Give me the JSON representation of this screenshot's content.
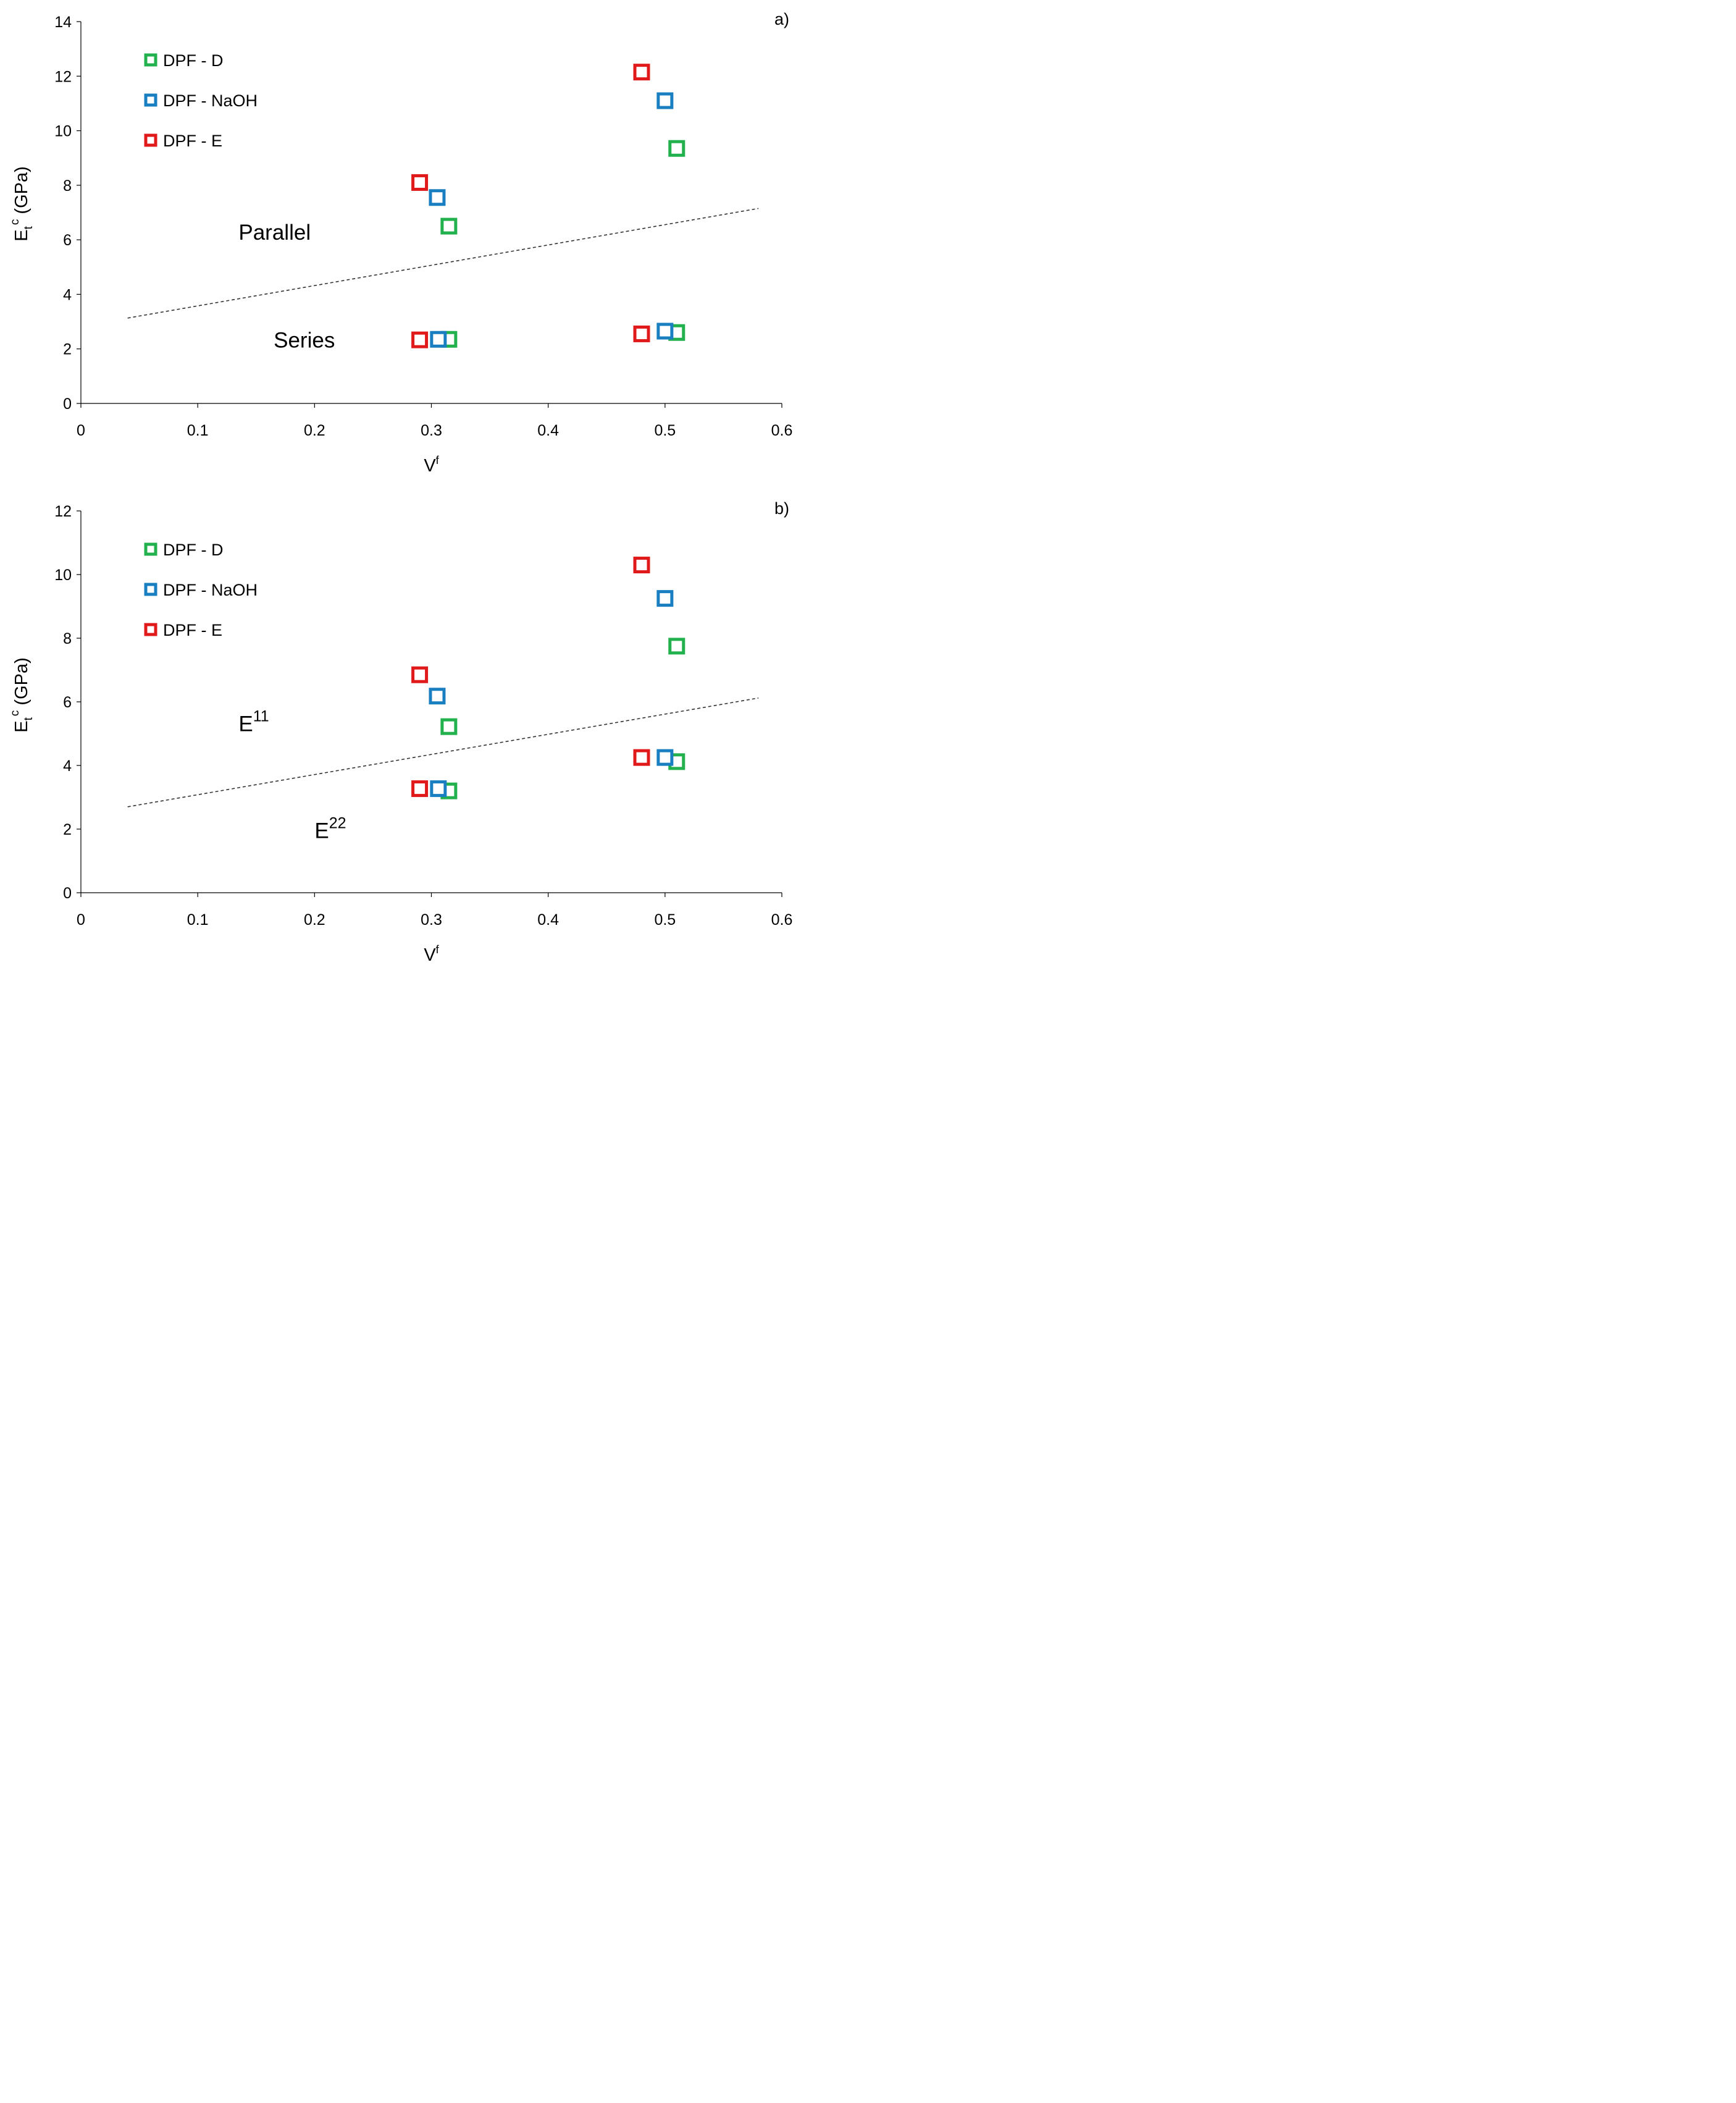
{
  "chart_data": [
    {
      "type": "scatter",
      "panel_label": "a)",
      "xlabel": "V",
      "xlabel_sup": "f",
      "ylabel": "E",
      "ylabel_sub": "t",
      "ylabel_sup": "c",
      "ylabel_unit": " (GPa)",
      "xlim": [
        0,
        0.6
      ],
      "ylim": [
        0,
        14
      ],
      "xticks": [
        0,
        0.1,
        0.2,
        0.3,
        0.4,
        0.5,
        0.6
      ],
      "xtick_labels": [
        "0",
        "0.1",
        "0.2",
        "0.3",
        "0.4",
        "0.5",
        "0.6"
      ],
      "yticks": [
        0,
        2,
        4,
        6,
        8,
        10,
        12,
        14
      ],
      "ytick_labels": [
        "0",
        "2",
        "4",
        "6",
        "8",
        "10",
        "12",
        "14"
      ],
      "legend": [
        "DPF - D",
        "DPF - NaOH",
        "DPF - E"
      ],
      "series": [
        {
          "name": "DPF - D",
          "color": "#22b14c",
          "points": [
            [
              0.315,
              6.5
            ],
            [
              0.51,
              9.35
            ],
            [
              0.315,
              2.35
            ],
            [
              0.51,
              2.6
            ]
          ]
        },
        {
          "name": "DPF - NaOH",
          "color": "#1a7fc1",
          "points": [
            [
              0.305,
              7.55
            ],
            [
              0.5,
              11.1
            ],
            [
              0.306,
              2.35
            ],
            [
              0.5,
              2.65
            ]
          ]
        },
        {
          "name": "DPF - E",
          "color": "#e0191b",
          "points": [
            [
              0.29,
              8.1
            ],
            [
              0.48,
              12.15
            ],
            [
              0.29,
              2.33
            ],
            [
              0.48,
              2.55
            ]
          ]
        }
      ],
      "fit_line": {
        "style": "dashed",
        "x": [
          0.04,
          0.58
        ],
        "y": [
          3.13,
          7.15
        ]
      },
      "annotations": [
        {
          "text": "Parallel",
          "x": 0.135,
          "y": 6.0
        },
        {
          "text": "Series",
          "x": 0.165,
          "y": 2.05
        }
      ]
    },
    {
      "type": "scatter",
      "panel_label": "b)",
      "xlabel": "V",
      "xlabel_sup": "f",
      "ylabel": "E",
      "ylabel_sub": "t",
      "ylabel_sup": "c",
      "ylabel_unit": " (GPa)",
      "xlim": [
        0,
        0.6
      ],
      "ylim": [
        0,
        12
      ],
      "xticks": [
        0,
        0.1,
        0.2,
        0.3,
        0.4,
        0.5,
        0.6
      ],
      "xtick_labels": [
        "0",
        "0.1",
        "0.2",
        "0.3",
        "0.4",
        "0.5",
        "0.6"
      ],
      "yticks": [
        0,
        2,
        4,
        6,
        8,
        10,
        12
      ],
      "ytick_labels": [
        "0",
        "2",
        "4",
        "6",
        "8",
        "10",
        "12"
      ],
      "legend": [
        "DPF - D",
        "DPF - NaOH",
        "DPF - E"
      ],
      "series": [
        {
          "name": "DPF - D",
          "color": "#22b14c",
          "points": [
            [
              0.315,
              5.22
            ],
            [
              0.51,
              7.75
            ],
            [
              0.315,
              3.2
            ],
            [
              0.51,
              4.12
            ]
          ]
        },
        {
          "name": "DPF - NaOH",
          "color": "#1a7fc1",
          "points": [
            [
              0.305,
              6.18
            ],
            [
              0.5,
              9.25
            ],
            [
              0.306,
              3.27
            ],
            [
              0.5,
              4.25
            ]
          ]
        },
        {
          "name": "DPF - E",
          "color": "#e0191b",
          "points": [
            [
              0.29,
              6.85
            ],
            [
              0.48,
              10.3
            ],
            [
              0.29,
              3.27
            ],
            [
              0.48,
              4.25
            ]
          ]
        }
      ],
      "fit_line": {
        "style": "dashed",
        "x": [
          0.04,
          0.58
        ],
        "y": [
          2.7,
          6.12
        ]
      },
      "annotations": [
        {
          "text": "E",
          "sup": "11",
          "x": 0.135,
          "y": 5.08
        },
        {
          "text": "E",
          "sup": "22",
          "x": 0.2,
          "y": 1.72
        }
      ]
    }
  ]
}
